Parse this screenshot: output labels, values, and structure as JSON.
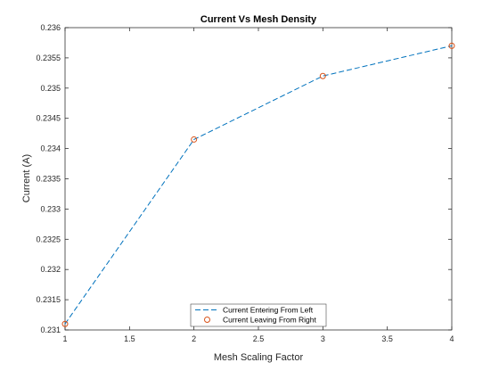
{
  "chart_data": {
    "type": "line",
    "title": "Current Vs Mesh Density",
    "xlabel": "Mesh Scaling Factor",
    "ylabel": "Current (A)",
    "xlim": [
      1,
      4
    ],
    "ylim": [
      0.231,
      0.236
    ],
    "x_ticks": [
      1,
      1.5,
      2,
      2.5,
      3,
      3.5,
      4
    ],
    "x_tick_labels": [
      "1",
      "1.5",
      "2",
      "2.5",
      "3",
      "3.5",
      "4"
    ],
    "y_ticks": [
      0.231,
      0.2315,
      0.232,
      0.2325,
      0.233,
      0.2335,
      0.234,
      0.2345,
      0.235,
      0.2355,
      0.236
    ],
    "y_tick_labels": [
      "0.231",
      "0.2315",
      "0.232",
      "0.2325",
      "0.233",
      "0.2335",
      "0.234",
      "0.2345",
      "0.235",
      "0.2355",
      "0.236"
    ],
    "grid": false,
    "legend_position": "bottom-center",
    "x": [
      1,
      2,
      3,
      4
    ],
    "series": [
      {
        "name": "Current Entering From Left",
        "style": "dashed-line",
        "color": "#0072BD",
        "values": [
          0.2311,
          0.23415,
          0.2352,
          0.2357
        ]
      },
      {
        "name": "Current Leaving From Right",
        "style": "circle-markers",
        "color": "#D95319",
        "values": [
          0.2311,
          0.23415,
          0.2352,
          0.2357
        ]
      }
    ]
  }
}
